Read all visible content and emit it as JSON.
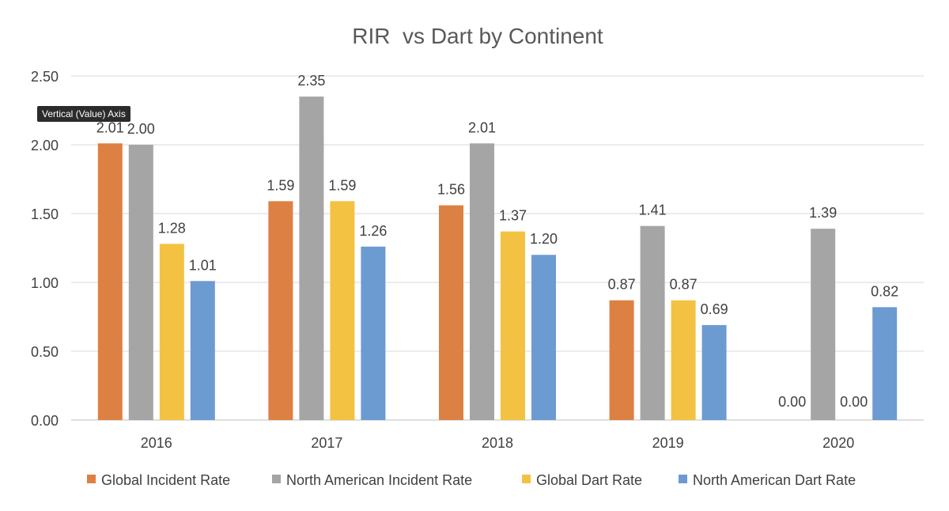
{
  "chart_data": {
    "type": "bar",
    "title": "RIR  vs Dart by Continent",
    "xlabel": "",
    "ylabel": "",
    "ylim": [
      0,
      2.5
    ],
    "yticks": [
      "0.00",
      "0.50",
      "1.00",
      "1.50",
      "2.00",
      "2.50"
    ],
    "categories": [
      "2016",
      "2017",
      "2018",
      "2019",
      "2020"
    ],
    "series": [
      {
        "name": "Global Incident Rate",
        "color": "#DD8043",
        "values": [
          2.01,
          1.59,
          1.56,
          0.87,
          0.0
        ]
      },
      {
        "name": "North American Incident Rate",
        "color": "#A5A5A5",
        "values": [
          2.0,
          2.35,
          2.01,
          1.41,
          1.39
        ]
      },
      {
        "name": "Global Dart Rate",
        "color": "#F3C243",
        "values": [
          1.28,
          1.59,
          1.37,
          0.87,
          0.0
        ]
      },
      {
        "name": "North American Dart Rate",
        "color": "#6C9BD2",
        "values": [
          1.01,
          1.26,
          1.2,
          0.69,
          0.82
        ]
      }
    ],
    "data_labels": [
      [
        "2.01",
        "1.59",
        "1.56",
        "0.87",
        ""
      ],
      [
        "2.00",
        "2.35",
        "2.01",
        "1.41",
        "1.39"
      ],
      [
        "1.28",
        "1.59",
        "1.37",
        "0.87",
        ""
      ],
      [
        "1.01",
        "1.26",
        "1.20",
        "0.69",
        "0.82"
      ]
    ],
    "zero_labels": [
      {
        "series": 0,
        "category": 4,
        "text": "0.00"
      },
      {
        "series": 2,
        "category": 4,
        "text": "0.00"
      }
    ],
    "grid": true,
    "legend_position": "bottom"
  },
  "tooltip": {
    "text": "Vertical (Value) Axis"
  }
}
